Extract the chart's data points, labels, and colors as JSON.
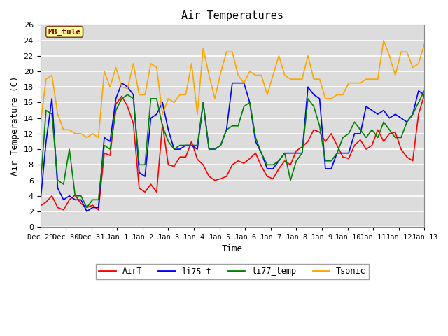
{
  "title": "Air Temperatures",
  "xlabel": "Time",
  "ylabel": "Air Temperature (C)",
  "ylim": [
    0,
    26
  ],
  "yticks": [
    0,
    2,
    4,
    6,
    8,
    10,
    12,
    14,
    16,
    18,
    20,
    22,
    24,
    26
  ],
  "legend_label": "MB_tule",
  "legend_fg": "#8B0000",
  "legend_bg": "#FFFFA0",
  "plot_bg": "#DCDCDC",
  "fig_bg": "#FFFFFF",
  "colors": {
    "AirT": "#FF0000",
    "li75_t": "#0000FF",
    "li77_temp": "#008000",
    "Tsonic": "#FFA500"
  },
  "line_width": 1.2,
  "x_tick_labels": [
    "Dec 29",
    "Dec 30",
    "Dec 31",
    "Jan 1",
    "Jan 2",
    "Jan 3",
    "Jan 4",
    "Jan 5",
    "Jan 6",
    "Jan 7",
    "Jan 8",
    "Jan 9",
    "Jan 10",
    "Jan 11",
    "Jan 12",
    "Jan 13"
  ],
  "x_tick_positions": [
    0,
    1,
    2,
    3,
    4,
    5,
    6,
    7,
    8,
    9,
    10,
    11,
    12,
    13,
    14,
    15
  ],
  "series": {
    "AirT": [
      2.7,
      3.2,
      4.0,
      2.5,
      2.2,
      3.5,
      4.1,
      3.0,
      2.5,
      2.8,
      2.2,
      9.5,
      9.2,
      15.8,
      16.8,
      15.5,
      13.3,
      5.0,
      4.5,
      5.5,
      4.5,
      13.2,
      8.0,
      7.8,
      9.0,
      9.0,
      11.0,
      8.7,
      8.0,
      6.5,
      6.0,
      6.2,
      6.5,
      8.0,
      8.5,
      8.2,
      8.8,
      9.5,
      7.8,
      6.5,
      6.2,
      7.5,
      8.5,
      8.0,
      9.8,
      10.3,
      11.0,
      12.5,
      12.2,
      11.0,
      12.0,
      10.5,
      9.0,
      8.8,
      10.5,
      11.2,
      10.0,
      10.5,
      12.5,
      11.0,
      12.0,
      12.2,
      10.0,
      9.0,
      8.5,
      14.5,
      17.0
    ],
    "li75_t": [
      3.0,
      11.0,
      16.5,
      5.0,
      3.5,
      4.0,
      3.5,
      3.5,
      2.0,
      2.5,
      2.5,
      11.5,
      11.0,
      16.5,
      18.5,
      18.0,
      17.0,
      7.0,
      6.5,
      14.0,
      14.5,
      16.0,
      12.5,
      10.0,
      10.0,
      10.5,
      10.5,
      10.0,
      16.0,
      10.0,
      10.0,
      10.5,
      12.5,
      18.5,
      18.5,
      18.5,
      16.0,
      11.0,
      9.5,
      7.5,
      7.5,
      8.5,
      9.5,
      9.5,
      9.5,
      9.5,
      18.0,
      17.0,
      16.5,
      7.5,
      7.5,
      9.5,
      9.5,
      9.5,
      12.0,
      12.0,
      15.5,
      15.0,
      14.5,
      15.0,
      14.0,
      14.5,
      14.0,
      13.5,
      14.5,
      17.5,
      17.0
    ],
    "li77_temp": [
      5.0,
      15.0,
      14.5,
      6.0,
      5.5,
      10.0,
      4.0,
      4.0,
      2.5,
      3.5,
      3.5,
      10.5,
      10.0,
      15.0,
      16.5,
      17.0,
      16.5,
      8.0,
      8.0,
      16.5,
      16.5,
      13.0,
      11.0,
      10.0,
      10.5,
      10.5,
      10.5,
      10.5,
      16.0,
      10.0,
      10.0,
      10.5,
      12.5,
      13.0,
      13.0,
      15.5,
      16.0,
      11.5,
      9.5,
      8.0,
      8.0,
      8.5,
      9.5,
      6.0,
      8.5,
      9.5,
      16.5,
      15.5,
      13.0,
      8.5,
      8.5,
      9.5,
      11.5,
      12.0,
      13.5,
      12.5,
      11.5,
      12.5,
      11.5,
      13.5,
      12.5,
      11.5,
      11.5,
      13.5,
      14.5,
      16.0,
      17.5
    ],
    "Tsonic": [
      13.0,
      19.0,
      19.5,
      14.5,
      12.5,
      12.5,
      12.0,
      12.0,
      11.5,
      12.0,
      11.5,
      20.0,
      18.0,
      20.5,
      18.0,
      17.8,
      21.0,
      17.0,
      17.0,
      21.0,
      20.5,
      14.5,
      16.5,
      16.0,
      17.0,
      17.0,
      21.0,
      14.5,
      23.0,
      19.5,
      16.5,
      19.8,
      22.5,
      22.5,
      19.5,
      18.5,
      20.0,
      19.5,
      19.5,
      17.0,
      19.5,
      22.0,
      19.5,
      19.0,
      19.0,
      19.0,
      22.0,
      19.0,
      19.0,
      16.5,
      16.5,
      17.0,
      17.0,
      18.5,
      18.5,
      18.5,
      19.0,
      19.0,
      19.0,
      24.0,
      22.0,
      19.5,
      22.5,
      22.5,
      20.5,
      21.0,
      23.5
    ]
  }
}
